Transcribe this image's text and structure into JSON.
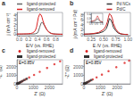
{
  "chart_data": [
    {
      "type": "line",
      "title": "a",
      "xlabel": "E/V (vs. RHE)",
      "ylabel": "j (mA cm⁻²)",
      "xlim": [
        -0.05,
        0.95
      ],
      "ylim": [
        -0.3,
        4.5
      ],
      "xticks": [
        {
          "value": 0.0,
          "label": "0.0"
        },
        0.2,
        0.4,
        0.6,
        0.8
      ],
      "yticks": [
        0,
        1,
        2,
        3,
        4
      ],
      "grid": false,
      "legend": "upper left",
      "series": [
        {
          "name": "ligand-protected",
          "color": "#666666",
          "x": [
            -0.05,
            0.0,
            0.05,
            0.1,
            0.15,
            0.2,
            0.25,
            0.3,
            0.35,
            0.4,
            0.42,
            0.45,
            0.48,
            0.5,
            0.52,
            0.55,
            0.6,
            0.65,
            0.7,
            0.75,
            0.8,
            0.85,
            0.9,
            0.95
          ],
          "values": [
            0.02,
            0.02,
            0.02,
            0.03,
            0.03,
            0.03,
            0.04,
            0.05,
            0.08,
            0.25,
            0.6,
            1.5,
            2.3,
            2.5,
            2.3,
            1.8,
            1.0,
            0.5,
            0.2,
            0.08,
            0.04,
            0.02,
            0.01,
            0.0
          ]
        },
        {
          "name": "ligand-removed",
          "color": "#dd2222",
          "x": [
            -0.05,
            0.0,
            0.05,
            0.1,
            0.15,
            0.2,
            0.25,
            0.3,
            0.35,
            0.38,
            0.4,
            0.42,
            0.45,
            0.48,
            0.5,
            0.52,
            0.55,
            0.6,
            0.65,
            0.7,
            0.75,
            0.8,
            0.85,
            0.9,
            0.95
          ],
          "values": [
            0.05,
            0.05,
            0.06,
            0.07,
            0.08,
            0.1,
            0.15,
            0.3,
            0.7,
            1.5,
            2.5,
            3.5,
            4.2,
            4.0,
            3.5,
            2.8,
            2.0,
            1.0,
            0.4,
            0.15,
            0.06,
            0.03,
            0.01,
            0.0,
            0.0
          ]
        }
      ]
    },
    {
      "type": "line",
      "title": "b",
      "xlabel": "E /V (vs. RHE)",
      "ylabel": "j (mA cm⁻² Pd)",
      "xlim": [
        0.1,
        1.05
      ],
      "ylim": [
        -0.5,
        9.0
      ],
      "xticks": [
        0.25,
        {
          "value": 0.5,
          "label": "0.50"
        },
        0.75,
        {
          "value": 1.0,
          "label": "1.00"
        }
      ],
      "yticks": [
        0,
        2,
        4,
        6,
        8
      ],
      "grid": false,
      "legend": "upper right",
      "series": [
        {
          "name": "Pd NCs",
          "color": "#333333",
          "x": [
            0.1,
            0.2,
            0.3,
            0.4,
            0.5,
            0.55,
            0.58,
            0.6,
            0.62,
            0.65,
            0.68,
            0.7,
            0.75,
            0.8,
            0.85,
            0.9,
            0.95,
            1.0
          ],
          "values": [
            0.1,
            0.15,
            0.25,
            0.5,
            1.2,
            2.2,
            3.5,
            5.0,
            6.5,
            6.0,
            4.5,
            3.0,
            1.5,
            0.6,
            0.2,
            0.08,
            0.02,
            0.0
          ]
        },
        {
          "name": "Pd/C",
          "color": "#cc2222",
          "x": [
            0.1,
            0.2,
            0.3,
            0.4,
            0.5,
            0.55,
            0.58,
            0.6,
            0.62,
            0.65,
            0.68,
            0.7,
            0.75,
            0.8,
            0.85,
            0.9,
            0.95,
            1.0
          ],
          "values": [
            0.15,
            0.2,
            0.4,
            0.8,
            2.0,
            3.5,
            5.2,
            7.0,
            8.5,
            8.0,
            6.5,
            4.5,
            2.2,
            0.9,
            0.3,
            0.1,
            0.03,
            0.0
          ]
        }
      ]
    },
    {
      "type": "line",
      "xlim": [
        0.0,
        1.1
      ],
      "ylim": [
        -0.02,
        0.45
      ],
      "xticks": [
        {
          "value": 0.0,
          "label": "0.0"
        },
        0.5,
        {
          "value": 1.0,
          "label": "1.0"
        }
      ],
      "yticks": [
        {
          "value": 0.0,
          "label": "0.0"
        },
        0.2,
        0.4
      ],
      "grid": false,
      "series": [
        {
          "color": "#333333",
          "x": [
            0.0,
            0.1,
            0.2,
            0.3,
            0.4,
            0.5,
            0.6,
            0.7,
            0.8,
            0.9,
            1.0,
            1.1
          ],
          "values": [
            0.02,
            0.02,
            0.03,
            0.04,
            0.06,
            0.1,
            0.18,
            0.12,
            0.06,
            0.02,
            0.01,
            0.0
          ]
        },
        {
          "color": "#cc2222",
          "x": [
            0.0,
            0.1,
            0.2,
            0.3,
            0.4,
            0.5,
            0.6,
            0.7,
            0.8,
            0.9,
            1.0,
            1.1
          ],
          "values": [
            0.03,
            0.04,
            0.06,
            0.08,
            0.12,
            0.2,
            0.32,
            0.22,
            0.1,
            0.04,
            0.01,
            0.0
          ]
        }
      ]
    },
    {
      "type": "scatter",
      "title": "c",
      "annotation": "E=0.85V",
      "xlabel": "Z' (Ω)",
      "ylabel": "-Z'' (Ω)",
      "xlim": [
        0,
        2800
      ],
      "ylim": [
        0,
        2800
      ],
      "xticks": [
        0,
        1000,
        2000
      ],
      "yticks": [
        0,
        1000,
        2000
      ],
      "grid": false,
      "legend": "upper left",
      "series": [
        {
          "name": "ligand-removed",
          "color": "#dd2222",
          "marker": "circle",
          "x": [
            15,
            30,
            50,
            80,
            120,
            180,
            260,
            370,
            530,
            750,
            1050,
            1400,
            1850,
            2300,
            2650
          ],
          "values": [
            10,
            20,
            35,
            60,
            100,
            160,
            240,
            360,
            520,
            740,
            1040,
            1400,
            1850,
            2280,
            2620
          ]
        },
        {
          "name": "ligand-protected",
          "color": "#333333",
          "marker": "square",
          "x": [
            15,
            25,
            40,
            65,
            100,
            150,
            220,
            320,
            450,
            600
          ],
          "values": [
            8,
            15,
            28,
            48,
            80,
            130,
            200,
            310,
            440,
            590
          ]
        }
      ]
    },
    {
      "type": "scatter",
      "title": "d",
      "annotation": "E=0.85V",
      "xlabel": "Z' (Ω)",
      "ylabel": "-Z'' (Ω)",
      "xlim": [
        0,
        2800
      ],
      "ylim": [
        0,
        2800
      ],
      "xticks": [
        0,
        1000,
        2000
      ],
      "yticks": [
        0,
        1000,
        2000
      ],
      "grid": false,
      "legend": "upper left",
      "series": [
        {
          "name": "ligand-removed",
          "color": "#dd2222",
          "marker": "circle",
          "x": [
            12,
            25,
            45,
            75,
            115,
            175,
            255,
            370,
            530,
            760,
            1080,
            1480,
            1950,
            2450,
            2720
          ],
          "values": [
            8,
            18,
            32,
            58,
            95,
            155,
            235,
            360,
            520,
            750,
            1070,
            1470,
            1940,
            2430,
            2700
          ]
        },
        {
          "name": "ligand-protected",
          "color": "#333333",
          "marker": "square",
          "x": [
            12,
            22,
            38,
            62,
            98,
            148,
            215,
            315,
            440
          ],
          "values": [
            6,
            14,
            26,
            46,
            78,
            128,
            196,
            306,
            432
          ]
        }
      ]
    }
  ]
}
